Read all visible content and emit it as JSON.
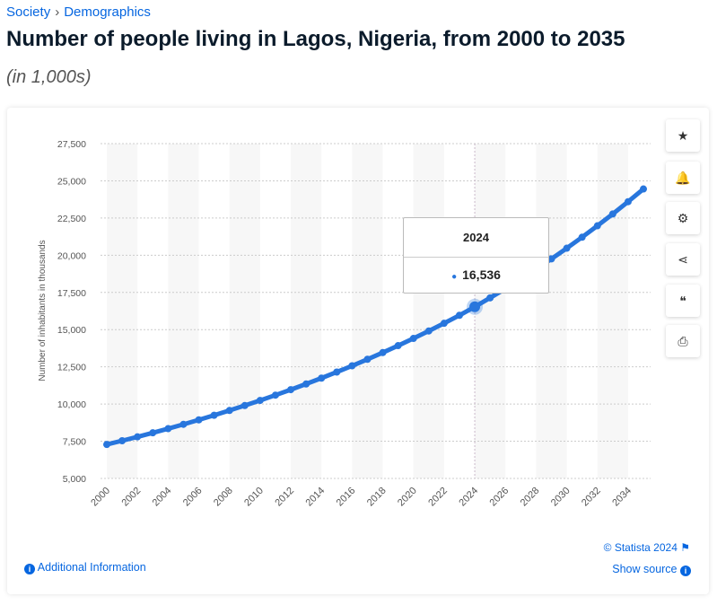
{
  "breadcrumb": [
    "Society",
    "Demographics"
  ],
  "title": "Number of people living in Lagos, Nigeria, from 2000 to 2035",
  "subtitle": "(in 1,000s)",
  "sidebar": [
    {
      "icon": "star-icon",
      "glyph": "★"
    },
    {
      "icon": "bell-icon",
      "glyph": "🔔"
    },
    {
      "icon": "gear-icon",
      "glyph": "⚙"
    },
    {
      "icon": "share-icon",
      "glyph": "⋖"
    },
    {
      "icon": "quote-icon",
      "glyph": "❝"
    },
    {
      "icon": "print-icon",
      "glyph": "⎙"
    }
  ],
  "tooltip": {
    "year": "2024",
    "value": "16,536"
  },
  "footer": {
    "copyright": "© Statista 2024",
    "additional_info": "Additional Information",
    "show_source": "Show source"
  },
  "colors": {
    "line": "#2876dd",
    "link": "#0666e0"
  },
  "chart_data": {
    "type": "line",
    "ylabel": "Number of inhabitants in thousands",
    "xlabel": "",
    "ylim": [
      5000,
      27500
    ],
    "yticks": [
      5000,
      7500,
      10000,
      12500,
      15000,
      17500,
      20000,
      22500,
      25000,
      27500
    ],
    "ytick_labels": [
      "5,000",
      "7,500",
      "10,000",
      "12,500",
      "15,000",
      "17,500",
      "20,000",
      "22,500",
      "25,000",
      "27,500"
    ],
    "xtick_labels": [
      "2000",
      "2002",
      "2004",
      "2006",
      "2008",
      "2010",
      "2012",
      "2014",
      "2016",
      "2018",
      "2020",
      "2022",
      "2024",
      "2026",
      "2028",
      "2030",
      "2032",
      "2034"
    ],
    "grid": true,
    "x": [
      2000,
      2001,
      2002,
      2003,
      2004,
      2005,
      2006,
      2007,
      2008,
      2009,
      2010,
      2011,
      2012,
      2013,
      2014,
      2015,
      2016,
      2017,
      2018,
      2019,
      2020,
      2021,
      2022,
      2023,
      2024,
      2025,
      2026,
      2027,
      2028,
      2029,
      2030,
      2031,
      2032,
      2033,
      2034,
      2035
    ],
    "values": [
      7281,
      7534,
      7795,
      8066,
      8346,
      8636,
      8936,
      9246,
      9567,
      9899,
      10243,
      10598,
      10966,
      11347,
      11741,
      12149,
      12570,
      13007,
      13458,
      13925,
      14409,
      14909,
      15427,
      15963,
      16536,
      17135,
      17755,
      18398,
      19064,
      19754,
      20469,
      21210,
      21978,
      22773,
      23597,
      24451
    ],
    "highlighted": 2024
  }
}
